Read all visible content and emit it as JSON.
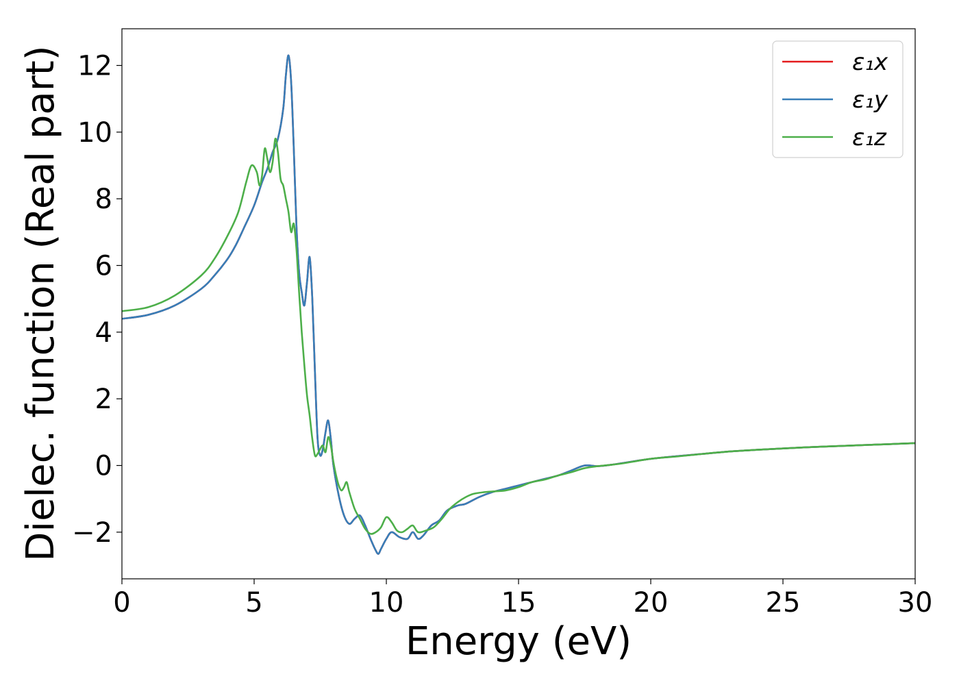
{
  "chart_data": {
    "type": "line",
    "xlabel": "Energy (eV)",
    "ylabel": "Dielec. function (Real part)",
    "xlim": [
      0,
      30
    ],
    "ylim": [
      -3.4,
      13.1
    ],
    "xticks": [
      0,
      5,
      10,
      15,
      20,
      25,
      30
    ],
    "yticks": [
      -2,
      0,
      2,
      4,
      6,
      8,
      10,
      12
    ],
    "xtick_labels": [
      "0",
      "5",
      "10",
      "15",
      "20",
      "25",
      "30"
    ],
    "ytick_labels": [
      "−2",
      "0",
      "2",
      "4",
      "6",
      "8",
      "10",
      "12"
    ],
    "grid": false,
    "legend_position": "top-right",
    "series": [
      {
        "name": "ε₁x",
        "color": "#e41a1c",
        "x": [
          0,
          1,
          2,
          3,
          3.5,
          4,
          4.3,
          4.6,
          5,
          5.3,
          5.5,
          5.7,
          5.9,
          6.1,
          6.2,
          6.3,
          6.4,
          6.5,
          6.6,
          6.7,
          6.8,
          6.9,
          7.0,
          7.1,
          7.2,
          7.3,
          7.4,
          7.5,
          7.6,
          7.7,
          7.8,
          7.9,
          8.0,
          8.2,
          8.4,
          8.6,
          8.8,
          9.0,
          9.2,
          9.4,
          9.6,
          9.7,
          9.8,
          10.0,
          10.2,
          10.5,
          10.8,
          11.0,
          11.2,
          11.4,
          11.7,
          12.0,
          12.3,
          12.7,
          13.0,
          13.5,
          14.0,
          14.5,
          15.0,
          15.5,
          16.0,
          16.5,
          17.0,
          17.5,
          18.0,
          18.5,
          19.0,
          20.0,
          21.0,
          22.0,
          23.0,
          24.0,
          25.0,
          26.0,
          27.0,
          28.0,
          29.0,
          30.0
        ],
        "y": [
          4.4,
          4.52,
          4.8,
          5.3,
          5.7,
          6.2,
          6.6,
          7.1,
          7.8,
          8.5,
          8.9,
          9.4,
          9.8,
          10.7,
          11.7,
          12.3,
          11.5,
          9.5,
          7.2,
          5.8,
          5.2,
          4.8,
          5.5,
          6.25,
          5.0,
          2.8,
          0.8,
          0.3,
          0.5,
          1.0,
          1.35,
          0.8,
          0.0,
          -0.9,
          -1.5,
          -1.75,
          -1.6,
          -1.5,
          -1.8,
          -2.2,
          -2.55,
          -2.65,
          -2.5,
          -2.2,
          -2.0,
          -2.15,
          -2.2,
          -2.0,
          -2.2,
          -2.1,
          -1.8,
          -1.65,
          -1.35,
          -1.2,
          -1.15,
          -0.95,
          -0.8,
          -0.7,
          -0.6,
          -0.5,
          -0.4,
          -0.3,
          -0.15,
          0.0,
          -0.02,
          0.02,
          0.08,
          0.2,
          0.28,
          0.35,
          0.42,
          0.47,
          0.51,
          0.55,
          0.58,
          0.61,
          0.64,
          0.67
        ]
      },
      {
        "name": "ε₁y",
        "color": "#377eb8",
        "x": [
          0,
          1,
          2,
          3,
          3.5,
          4,
          4.3,
          4.6,
          5,
          5.3,
          5.5,
          5.7,
          5.9,
          6.1,
          6.2,
          6.3,
          6.4,
          6.5,
          6.6,
          6.7,
          6.8,
          6.9,
          7.0,
          7.1,
          7.2,
          7.3,
          7.4,
          7.5,
          7.6,
          7.7,
          7.8,
          7.9,
          8.0,
          8.2,
          8.4,
          8.6,
          8.8,
          9.0,
          9.2,
          9.4,
          9.6,
          9.7,
          9.8,
          10.0,
          10.2,
          10.5,
          10.8,
          11.0,
          11.2,
          11.4,
          11.7,
          12.0,
          12.3,
          12.7,
          13.0,
          13.5,
          14.0,
          14.5,
          15.0,
          15.5,
          16.0,
          16.5,
          17.0,
          17.5,
          18.0,
          18.5,
          19.0,
          20.0,
          21.0,
          22.0,
          23.0,
          24.0,
          25.0,
          26.0,
          27.0,
          28.0,
          29.0,
          30.0
        ],
        "y": [
          4.4,
          4.52,
          4.8,
          5.3,
          5.7,
          6.2,
          6.6,
          7.1,
          7.8,
          8.5,
          8.9,
          9.4,
          9.8,
          10.7,
          11.7,
          12.3,
          11.5,
          9.5,
          7.2,
          5.8,
          5.2,
          4.8,
          5.5,
          6.25,
          5.0,
          2.8,
          0.8,
          0.3,
          0.5,
          1.0,
          1.35,
          0.8,
          0.0,
          -0.9,
          -1.5,
          -1.75,
          -1.6,
          -1.5,
          -1.8,
          -2.2,
          -2.55,
          -2.65,
          -2.5,
          -2.2,
          -2.0,
          -2.15,
          -2.2,
          -2.0,
          -2.2,
          -2.1,
          -1.8,
          -1.65,
          -1.35,
          -1.2,
          -1.15,
          -0.95,
          -0.8,
          -0.7,
          -0.6,
          -0.5,
          -0.4,
          -0.3,
          -0.15,
          0.0,
          -0.02,
          0.02,
          0.08,
          0.2,
          0.28,
          0.35,
          0.42,
          0.47,
          0.51,
          0.55,
          0.58,
          0.61,
          0.64,
          0.67
        ]
      },
      {
        "name": "ε₁z",
        "color": "#4daf4a",
        "x": [
          0,
          1,
          2,
          3,
          3.5,
          4,
          4.4,
          4.7,
          4.9,
          5.1,
          5.2,
          5.3,
          5.4,
          5.5,
          5.6,
          5.7,
          5.8,
          5.9,
          6.0,
          6.1,
          6.2,
          6.3,
          6.4,
          6.5,
          6.6,
          6.7,
          6.8,
          6.9,
          7.0,
          7.1,
          7.2,
          7.3,
          7.4,
          7.5,
          7.6,
          7.7,
          7.8,
          7.9,
          8.0,
          8.1,
          8.2,
          8.3,
          8.4,
          8.5,
          8.6,
          8.8,
          9.0,
          9.2,
          9.4,
          9.6,
          9.8,
          10.0,
          10.2,
          10.4,
          10.6,
          10.8,
          11.0,
          11.2,
          11.5,
          11.8,
          12.1,
          12.4,
          12.7,
          13.0,
          13.3,
          13.7,
          14.0,
          14.5,
          15.0,
          15.5,
          16.0,
          16.5,
          17.0,
          17.5,
          18.0,
          18.5,
          19.0,
          20.0,
          21.0,
          22.0,
          23.0,
          24.0,
          25.0,
          26.0,
          27.0,
          28.0,
          29.0,
          30.0
        ],
        "y": [
          4.63,
          4.75,
          5.1,
          5.7,
          6.2,
          6.9,
          7.6,
          8.5,
          9.0,
          8.8,
          8.4,
          8.7,
          9.5,
          9.2,
          8.8,
          9.1,
          9.8,
          9.4,
          8.6,
          8.4,
          8.0,
          7.6,
          7.0,
          7.25,
          6.5,
          5.2,
          4.0,
          3.0,
          2.1,
          1.5,
          0.8,
          0.3,
          0.35,
          0.5,
          0.6,
          0.4,
          0.85,
          0.6,
          0.1,
          -0.3,
          -0.6,
          -0.75,
          -0.65,
          -0.5,
          -0.8,
          -1.3,
          -1.6,
          -1.9,
          -2.05,
          -2.0,
          -1.85,
          -1.55,
          -1.7,
          -1.95,
          -2.0,
          -1.9,
          -1.8,
          -2.0,
          -1.95,
          -1.85,
          -1.6,
          -1.3,
          -1.1,
          -0.95,
          -0.85,
          -0.8,
          -0.78,
          -0.75,
          -0.65,
          -0.5,
          -0.42,
          -0.3,
          -0.2,
          -0.08,
          -0.02,
          0.02,
          0.07,
          0.2,
          0.27,
          0.35,
          0.42,
          0.47,
          0.51,
          0.55,
          0.58,
          0.61,
          0.64,
          0.67
        ]
      }
    ]
  }
}
